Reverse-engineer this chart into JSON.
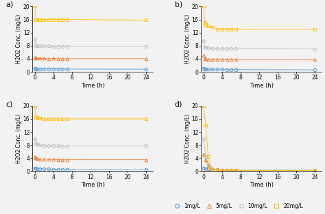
{
  "panels": {
    "a": {
      "label": "a)",
      "series": {
        "1mg/L": {
          "color": "#5B9BD5",
          "marker": "o",
          "x": [
            0,
            0.25,
            0.5,
            1,
            2,
            3,
            4,
            5,
            6,
            7,
            24
          ],
          "y": [
            1.0,
            0.9,
            0.9,
            0.9,
            0.9,
            0.9,
            0.9,
            0.85,
            0.85,
            0.85,
            0.8
          ]
        },
        "5mg/L": {
          "color": "#ED7D31",
          "marker": "^",
          "x": [
            0,
            0.25,
            0.5,
            1,
            2,
            3,
            4,
            5,
            6,
            7,
            24
          ],
          "y": [
            4.5,
            4.2,
            4.1,
            4.1,
            4.1,
            4.0,
            4.1,
            4.0,
            4.0,
            4.0,
            4.0
          ]
        },
        "10mg/L": {
          "color": "#BFBFBF",
          "marker": "o",
          "x": [
            0,
            0.25,
            0.5,
            1,
            2,
            3,
            4,
            5,
            6,
            7,
            24
          ],
          "y": [
            10,
            8.0,
            8.0,
            7.9,
            7.9,
            7.9,
            7.8,
            7.8,
            7.8,
            7.8,
            7.8
          ]
        },
        "20mg/L": {
          "color": "#FFC000",
          "marker": "s",
          "x": [
            0,
            0.25,
            0.5,
            1,
            2,
            3,
            4,
            5,
            6,
            7,
            24
          ],
          "y": [
            20,
            16,
            16,
            16,
            16,
            16,
            16,
            16,
            16,
            16,
            15.8
          ]
        }
      }
    },
    "b": {
      "label": "b)",
      "series": {
        "1mg/L": {
          "color": "#5B9BD5",
          "marker": "o",
          "x": [
            0,
            0.25,
            0.5,
            1,
            2,
            3,
            4,
            5,
            6,
            7,
            24
          ],
          "y": [
            1.0,
            0.9,
            0.8,
            0.8,
            0.8,
            0.8,
            0.8,
            0.7,
            0.7,
            0.7,
            0.6
          ]
        },
        "5mg/L": {
          "color": "#ED7D31",
          "marker": "^",
          "x": [
            0,
            0.25,
            0.5,
            1,
            2,
            3,
            4,
            5,
            6,
            7,
            24
          ],
          "y": [
            5.0,
            4.0,
            3.9,
            3.8,
            3.8,
            3.8,
            3.8,
            3.7,
            3.7,
            3.7,
            3.7
          ]
        },
        "10mg/L": {
          "color": "#BFBFBF",
          "marker": "o",
          "x": [
            0,
            0.25,
            0.5,
            1,
            2,
            3,
            4,
            5,
            6,
            7,
            24
          ],
          "y": [
            9.5,
            7.5,
            7.5,
            7.3,
            7.2,
            7.2,
            7.2,
            7.1,
            7.1,
            7.1,
            7.0
          ]
        },
        "20mg/L": {
          "color": "#FFC000",
          "marker": "s",
          "x": [
            0,
            0.25,
            0.5,
            1,
            2,
            3,
            4,
            5,
            6,
            7,
            24
          ],
          "y": [
            20,
            15,
            14.5,
            14,
            13.5,
            13,
            13,
            13,
            13,
            13,
            13
          ]
        }
      }
    },
    "c": {
      "label": "c)",
      "series": {
        "1mg/L": {
          "color": "#5B9BD5",
          "marker": "o",
          "x": [
            0,
            0.25,
            0.5,
            1,
            2,
            3,
            4,
            5,
            6,
            7,
            24
          ],
          "y": [
            1.0,
            0.9,
            0.8,
            0.8,
            0.7,
            0.7,
            0.6,
            0.6,
            0.5,
            0.5,
            0.4
          ]
        },
        "5mg/L": {
          "color": "#ED7D31",
          "marker": "^",
          "x": [
            0,
            0.25,
            0.5,
            1,
            2,
            3,
            4,
            5,
            6,
            7,
            24
          ],
          "y": [
            4.5,
            4.0,
            3.8,
            3.7,
            3.7,
            3.6,
            3.6,
            3.5,
            3.5,
            3.5,
            3.5
          ]
        },
        "10mg/L": {
          "color": "#BFBFBF",
          "marker": "o",
          "x": [
            0,
            0.25,
            0.5,
            1,
            2,
            3,
            4,
            5,
            6,
            7,
            24
          ],
          "y": [
            10,
            8.5,
            8.2,
            8.0,
            7.9,
            7.8,
            7.8,
            7.8,
            7.7,
            7.7,
            7.8
          ]
        },
        "20mg/L": {
          "color": "#FFC000",
          "marker": "s",
          "x": [
            0,
            0.25,
            0.5,
            1,
            2,
            3,
            4,
            5,
            6,
            7,
            24
          ],
          "y": [
            20,
            16.5,
            16.3,
            16.1,
            16,
            16,
            16,
            16,
            16,
            16,
            16
          ]
        }
      }
    },
    "d": {
      "label": "d)",
      "series": {
        "1mg/L": {
          "color": "#5B9BD5",
          "marker": "o",
          "x": [
            0,
            0.5,
            1,
            1.5,
            2,
            3,
            4,
            5,
            6,
            7,
            24
          ],
          "y": [
            1.0,
            0.8,
            0.7,
            0.6,
            0.5,
            0.4,
            0.3,
            0.3,
            0.3,
            0.3,
            0.3
          ]
        },
        "5mg/L": {
          "color": "#ED7D31",
          "marker": "^",
          "x": [
            0,
            0.5,
            1,
            1.5,
            2,
            3,
            4,
            5,
            6,
            7,
            24
          ],
          "y": [
            5.0,
            3.5,
            1.8,
            0.9,
            0.6,
            0.4,
            0.3,
            0.3,
            0.2,
            0.2,
            0.2
          ]
        },
        "10mg/L": {
          "color": "#BFBFBF",
          "marker": "o",
          "x": [
            0,
            0.5,
            1,
            1.5,
            2,
            3,
            4,
            5,
            6,
            7,
            24
          ],
          "y": [
            10,
            4.5,
            2.0,
            0.8,
            0.5,
            0.3,
            0.2,
            0.2,
            0.2,
            0.2,
            0.2
          ]
        },
        "20mg/L": {
          "color": "#FFC000",
          "marker": "s",
          "x": [
            0,
            0.5,
            1,
            1.5,
            2,
            3,
            4,
            5,
            6,
            7,
            24
          ],
          "y": [
            20,
            14,
            4.5,
            1.2,
            0.5,
            0.3,
            0.2,
            0.2,
            0.2,
            0.2,
            0.2
          ]
        }
      }
    }
  },
  "ylabel": "H2O2 Conc. (mg/L)",
  "xlabel": "Time (h)",
  "ylim": [
    0,
    20
  ],
  "yticks": [
    0,
    4,
    8,
    12,
    16,
    20
  ],
  "xticks": [
    0,
    4,
    8,
    12,
    16,
    20,
    24
  ],
  "xlim": [
    -0.5,
    25.5
  ],
  "legend_labels": [
    "1mg/L",
    "5mg/L",
    "10mg/L",
    "20mg/L"
  ],
  "legend_markers": [
    "o",
    "^",
    "o",
    "s"
  ],
  "legend_colors": [
    "#5B9BD5",
    "#ED7D31",
    "#BFBFBF",
    "#FFC000"
  ],
  "background": "#F2F2F2"
}
